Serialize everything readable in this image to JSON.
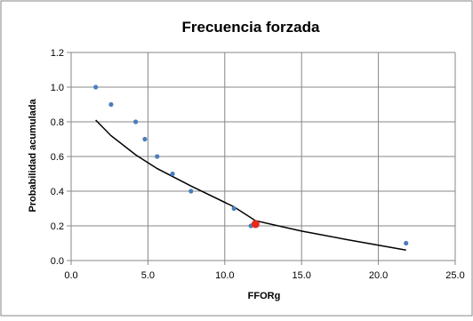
{
  "chart_data": {
    "type": "scatter",
    "title": "Frecuencia forzada",
    "xlabel": "FFORg",
    "ylabel": "Probabilidad acumulada",
    "xlim": [
      0,
      25
    ],
    "ylim": [
      0,
      1.2
    ],
    "x_ticks": [
      "0.0",
      "5.0",
      "10.0",
      "15.0",
      "20.0",
      "25.0"
    ],
    "y_ticks": [
      "0.0",
      "0.2",
      "0.4",
      "0.6",
      "0.8",
      "1.0",
      "1.2"
    ],
    "grid": true,
    "legend": "none",
    "series": [
      {
        "kind": "scatter",
        "color": "#4a7ebb",
        "points": [
          [
            1.6,
            1.0
          ],
          [
            2.6,
            0.9
          ],
          [
            4.2,
            0.8
          ],
          [
            4.8,
            0.7
          ],
          [
            5.6,
            0.6
          ],
          [
            6.6,
            0.5
          ],
          [
            7.8,
            0.4
          ],
          [
            10.6,
            0.3
          ],
          [
            11.7,
            0.2
          ],
          [
            21.8,
            0.1
          ]
        ]
      },
      {
        "kind": "line",
        "color": "#000000",
        "points": [
          [
            1.6,
            0.81
          ],
          [
            2.6,
            0.72
          ],
          [
            4.2,
            0.61
          ],
          [
            5.6,
            0.53
          ],
          [
            7.8,
            0.43
          ],
          [
            10.6,
            0.31
          ],
          [
            12.0,
            0.23
          ],
          [
            15.0,
            0.17
          ],
          [
            18.0,
            0.12
          ],
          [
            21.8,
            0.06
          ]
        ]
      },
      {
        "kind": "highlight",
        "color": "#e8281c",
        "points": [
          [
            12.0,
            0.21
          ]
        ]
      }
    ]
  }
}
